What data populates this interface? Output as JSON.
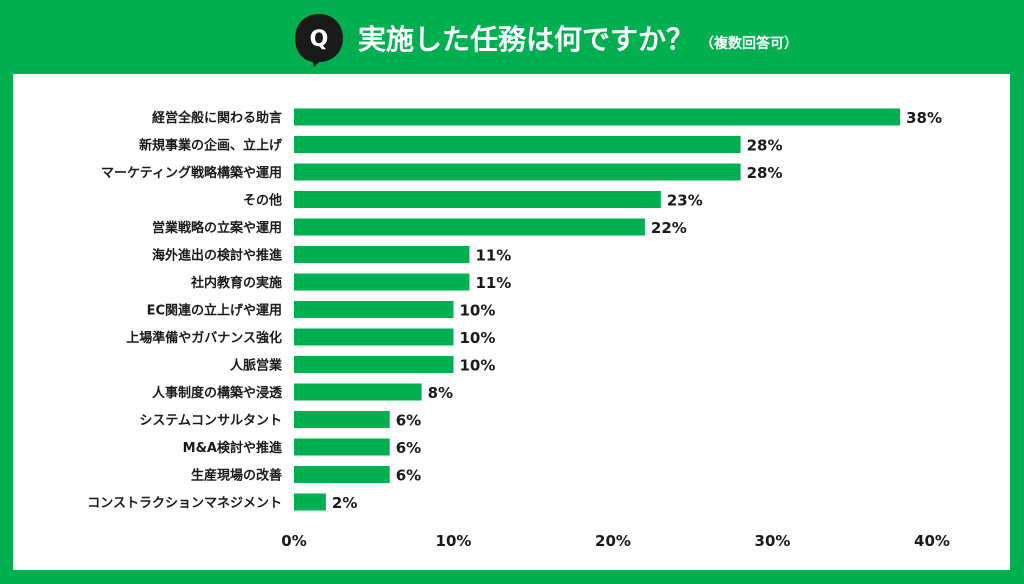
{
  "header": {
    "badge_letter": "Q",
    "title": "実施した任務は何ですか？",
    "note": "（複数回答可）"
  },
  "colors": {
    "background": "#00b050",
    "bar": "#00b050",
    "panel": "#ffffff",
    "badge": "#1a1a1a"
  },
  "chart_data": {
    "type": "bar",
    "orientation": "horizontal",
    "title": "",
    "xlabel": "",
    "ylabel": "",
    "xlim": [
      0,
      40
    ],
    "x_ticks": [
      0,
      10,
      20,
      30,
      40
    ],
    "x_tick_labels": [
      "0%",
      "10%",
      "20%",
      "30%",
      "40%"
    ],
    "grid": false,
    "categories": [
      "経営全般に関わる助言",
      "新規事業の企画、立上げ",
      "マーケティング戦略構築や運用",
      "その他",
      "営業戦略の立案や運用",
      "海外進出の検討や推進",
      "社内教育の実施",
      "EC関連の立上げや運用",
      "上場準備やガバナンス強化",
      "人脈営業",
      "人事制度の構築や浸透",
      "システムコンサルタント",
      "M&A検討や推進",
      "生産現場の改善",
      "コンストラクションマネジメント"
    ],
    "values": [
      38,
      28,
      28,
      23,
      22,
      11,
      11,
      10,
      10,
      10,
      8,
      6,
      6,
      6,
      2
    ],
    "value_labels": [
      "38%",
      "28%",
      "28%",
      "23%",
      "22%",
      "11%",
      "11%",
      "10%",
      "10%",
      "10%",
      "8%",
      "6%",
      "6%",
      "6%",
      "2%"
    ]
  }
}
